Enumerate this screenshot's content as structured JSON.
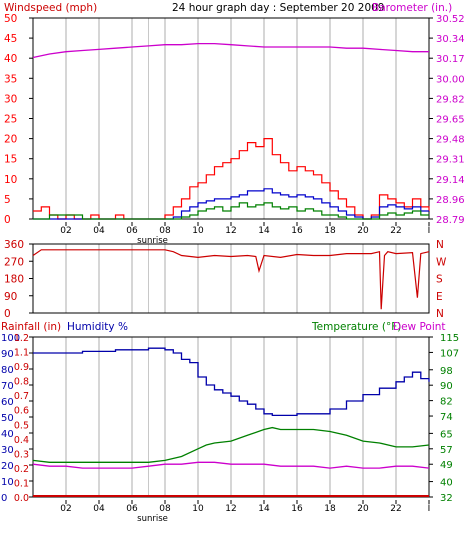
{
  "colors": {
    "wind": "#ff0000",
    "wind_avg": "#0000cc",
    "wind_low": "#008000",
    "baro": "#cc00cc",
    "direction": "#cc0000",
    "rain": "#cc0000",
    "humidity": "#0000aa",
    "temperature": "#008000",
    "dewpoint": "#cc00cc",
    "grid": "#c8c8c8",
    "frame": "#000000"
  },
  "header": {
    "left_label": "Windspeed (mph)",
    "title": "24 hour graph day : September 20 2009",
    "right_label": "Barometer (in.)"
  },
  "middle": {
    "left_ticks": [
      "360",
      "270",
      "180",
      "90",
      "0"
    ],
    "right_labels": [
      "N",
      "W",
      "S",
      "E",
      "N"
    ]
  },
  "bottom_header": {
    "rain_label": "Rainfall (in)",
    "humidity_label": "Humidity %",
    "temp_label": "Temperature (°F)",
    "dew_label": "Dew Point"
  },
  "x_axis": {
    "tick_labels": [
      "02",
      "04",
      "06",
      "08",
      "10",
      "12",
      "14",
      "16",
      "18",
      "20",
      "22",
      "I"
    ],
    "sunrise_label": "sunrise"
  },
  "chart_data": [
    {
      "type": "line",
      "x_hours": [
        0,
        24
      ],
      "left_axis": {
        "label": "Windspeed (mph)",
        "ticks": [
          0,
          5,
          10,
          15,
          20,
          25,
          30,
          35,
          40,
          45,
          50
        ],
        "ylim": [
          0,
          50
        ]
      },
      "right_axis": {
        "label": "Barometer (in.)",
        "ticks": [
          "28.79",
          "28.96",
          "29.14",
          "29.31",
          "29.48",
          "29.65",
          "29.82",
          "30.00",
          "30.17",
          "30.34",
          "30.52"
        ],
        "ylim": [
          28.79,
          30.52
        ]
      },
      "series": [
        {
          "name": "Windspeed (mph)",
          "x": [
            0,
            0.5,
            1,
            1.5,
            2,
            2.5,
            3,
            3.5,
            4,
            4.5,
            5,
            5.5,
            6,
            6.5,
            7,
            7.5,
            8,
            8.5,
            9,
            9.5,
            10,
            10.5,
            11,
            11.5,
            12,
            12.5,
            13,
            13.5,
            14,
            14.5,
            15,
            15.5,
            16,
            16.5,
            17,
            17.5,
            18,
            18.5,
            19,
            19.5,
            20,
            20.5,
            21,
            21.5,
            22,
            22.5,
            23,
            23.5,
            24
          ],
          "y": [
            2,
            3,
            1,
            0,
            1,
            0,
            0,
            1,
            0,
            0,
            1,
            0,
            0,
            0,
            0,
            0,
            1,
            3,
            5,
            8,
            9,
            11,
            13,
            14,
            15,
            17,
            19,
            18,
            20,
            16,
            14,
            12,
            13,
            12,
            11,
            9,
            7,
            5,
            3,
            1,
            0,
            1,
            6,
            5,
            4,
            3,
            5,
            3,
            2
          ]
        },
        {
          "name": "Average",
          "x": [
            0,
            1,
            2,
            3,
            4,
            5,
            6,
            7,
            8,
            8.5,
            9,
            9.5,
            10,
            10.5,
            11,
            11.5,
            12,
            12.5,
            13,
            13.5,
            14,
            14.5,
            15,
            15.5,
            16,
            16.5,
            17,
            17.5,
            18,
            18.5,
            19,
            19.5,
            20,
            20.5,
            21,
            21.5,
            22,
            22.5,
            23,
            23.5,
            24
          ],
          "y": [
            0,
            0,
            0,
            0,
            0,
            0,
            0,
            0,
            0,
            0.5,
            2,
            3,
            4,
            4.5,
            5,
            5,
            5.5,
            6,
            7,
            7,
            7.5,
            6.5,
            6,
            5.5,
            6,
            5.5,
            5,
            4,
            3,
            2,
            1,
            0.5,
            0,
            0.5,
            3,
            3.5,
            3,
            2.5,
            3,
            2,
            2
          ]
        },
        {
          "name": "Low",
          "x": [
            0,
            1,
            2,
            3,
            4,
            5,
            6,
            7,
            8,
            8.5,
            9,
            9.5,
            10,
            10.5,
            11,
            11.5,
            12,
            12.5,
            13,
            13.5,
            14,
            14.5,
            15,
            15.5,
            16,
            16.5,
            17,
            17.5,
            18,
            18.5,
            19,
            19.5,
            20,
            20.5,
            21,
            21.5,
            22,
            22.5,
            23,
            23.5,
            24
          ],
          "y": [
            0,
            1,
            1,
            0,
            0,
            0,
            0,
            0,
            0,
            0,
            0.5,
            1,
            2,
            2.5,
            3,
            2,
            3,
            4,
            3,
            3.5,
            4,
            3,
            2.5,
            3,
            2,
            2.5,
            2,
            1,
            1,
            0.5,
            0,
            0,
            0,
            0,
            1,
            1.5,
            1,
            1.5,
            2,
            1,
            1
          ]
        },
        {
          "name": "Barometer (in.)",
          "axis": "right",
          "x": [
            0,
            1,
            2,
            3,
            4,
            5,
            6,
            7,
            8,
            9,
            10,
            11,
            12,
            13,
            14,
            15,
            16,
            17,
            18,
            19,
            20,
            21,
            22,
            23,
            24
          ],
          "y": [
            30.18,
            30.21,
            30.23,
            30.24,
            30.25,
            30.26,
            30.27,
            30.28,
            30.29,
            30.29,
            30.3,
            30.3,
            30.29,
            30.28,
            30.27,
            30.27,
            30.27,
            30.27,
            30.27,
            30.26,
            30.26,
            30.25,
            30.24,
            30.23,
            30.23
          ]
        }
      ]
    },
    {
      "type": "line",
      "x_hours": [
        0,
        24
      ],
      "left_axis": {
        "ticks": [
          0,
          90,
          180,
          270,
          360
        ],
        "ylim": [
          0,
          360
        ]
      },
      "right_axis": {
        "ticks": [
          "N",
          "E",
          "S",
          "W",
          "N"
        ]
      },
      "series": [
        {
          "name": "Wind direction",
          "x": [
            0,
            0.5,
            8,
            8.5,
            9,
            10,
            11,
            12,
            13,
            13.5,
            13.7,
            14,
            15,
            16,
            17,
            18,
            19,
            20,
            20.5,
            21,
            21.1,
            21.3,
            21.5,
            22,
            23,
            23.3,
            23.5,
            24
          ],
          "y": [
            300,
            330,
            330,
            320,
            300,
            290,
            300,
            295,
            300,
            295,
            220,
            300,
            290,
            305,
            300,
            300,
            310,
            310,
            310,
            320,
            20,
            300,
            320,
            310,
            315,
            80,
            310,
            320
          ]
        }
      ]
    },
    {
      "type": "line",
      "x_hours": [
        0,
        24
      ],
      "left_axis_rain": {
        "label": "Rainfall (in)",
        "ticks": [
          "0.0",
          "0.1",
          "0.2",
          "0.3",
          "0.4",
          "0.5",
          "0.6",
          "0.7",
          "0.8",
          "0.9",
          "1.1",
          "1.2"
        ]
      },
      "left_axis_humidity": {
        "label": "Humidity %",
        "ticks": [
          0,
          10,
          20,
          30,
          40,
          50,
          60,
          70,
          80,
          90,
          100
        ],
        "ylim": [
          0,
          100
        ]
      },
      "right_axis": {
        "label": "Temperature (°F)",
        "ticks": [
          32,
          40,
          49,
          57,
          65,
          74,
          82,
          90,
          98,
          107,
          115
        ],
        "ylim": [
          32,
          115
        ]
      },
      "series": [
        {
          "name": "Rainfall (in)",
          "x": [
            0,
            24
          ],
          "y": [
            0,
            0
          ]
        },
        {
          "name": "Humidity %",
          "x": [
            0,
            1,
            2,
            3,
            4,
            5,
            6,
            7,
            7.5,
            8,
            8.5,
            9,
            9.5,
            10,
            10.5,
            11,
            11.5,
            12,
            12.5,
            13,
            13.5,
            14,
            14.5,
            15,
            16,
            17,
            18,
            19,
            20,
            21,
            22,
            22.5,
            23,
            23.5,
            24
          ],
          "y": [
            90,
            90,
            90,
            91,
            91,
            92,
            92,
            93,
            93,
            92,
            90,
            86,
            84,
            75,
            70,
            67,
            65,
            63,
            60,
            58,
            55,
            52,
            51,
            51,
            52,
            52,
            55,
            60,
            64,
            68,
            72,
            75,
            78,
            74,
            72
          ]
        },
        {
          "name": "Temperature (°F)",
          "axis": "right",
          "x": [
            0,
            1,
            2,
            3,
            4,
            5,
            6,
            7,
            8,
            9,
            10,
            10.5,
            11,
            12,
            13,
            14,
            14.5,
            15,
            16,
            17,
            18,
            19,
            20,
            21,
            22,
            23,
            24
          ],
          "y": [
            51,
            50,
            50,
            50,
            50,
            50,
            50,
            50,
            51,
            53,
            57,
            59,
            60,
            61,
            64,
            67,
            68,
            67,
            67,
            67,
            66,
            64,
            61,
            60,
            58,
            58,
            59
          ]
        },
        {
          "name": "Dew Point",
          "axis": "right",
          "x": [
            0,
            1,
            2,
            3,
            4,
            5,
            6,
            7,
            8,
            9,
            10,
            11,
            12,
            13,
            14,
            15,
            16,
            17,
            18,
            19,
            20,
            21,
            22,
            23,
            24
          ],
          "y": [
            49,
            48,
            48,
            47,
            47,
            47,
            47,
            48,
            49,
            49,
            50,
            50,
            49,
            49,
            49,
            48,
            48,
            48,
            47,
            48,
            47,
            47,
            48,
            48,
            47
          ]
        }
      ]
    }
  ]
}
